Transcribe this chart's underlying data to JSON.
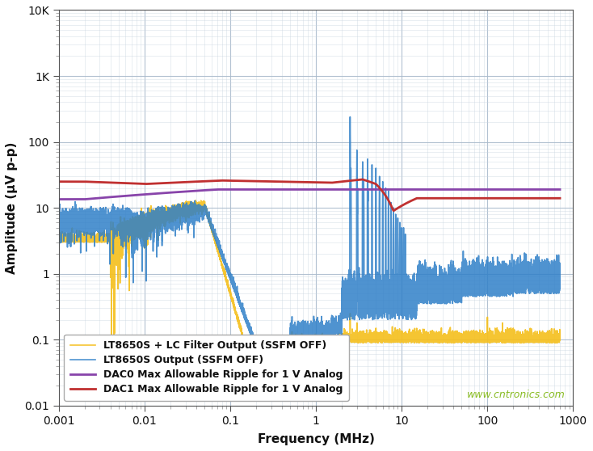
{
  "xlabel": "Frequency (MHz)",
  "ylabel": "Amplitude (μV p-p)",
  "xlim": [
    0.001,
    1000
  ],
  "ylim": [
    0.01,
    10000
  ],
  "legend": [
    {
      "label": "LT8650S Output (SSFM OFF)",
      "color": "#3080C8",
      "lw": 1.2
    },
    {
      "label": "LT8650S + LC Filter Output (SSFM OFF)",
      "color": "#F5C020",
      "lw": 1.2
    },
    {
      "label": "DAC0 Max Allowable Ripple for 1 V Analog",
      "color": "#8844AA",
      "lw": 2.0
    },
    {
      "label": "DAC1 Max Allowable Ripple for 1 V Analog",
      "color": "#C03030",
      "lw": 2.0
    }
  ],
  "yticks_major": [
    0.01,
    0.1,
    1,
    10,
    100,
    1000,
    10000
  ],
  "ytick_labels": [
    "0.01",
    "0.1",
    "1",
    "10",
    "100",
    "1K",
    "10K"
  ],
  "watermark": "www.cntronics.com",
  "watermark_color": "#88BB22",
  "background_color": "#FFFFFF",
  "grid_major_color": "#AABBCC",
  "grid_minor_color": "#C8D4E0"
}
